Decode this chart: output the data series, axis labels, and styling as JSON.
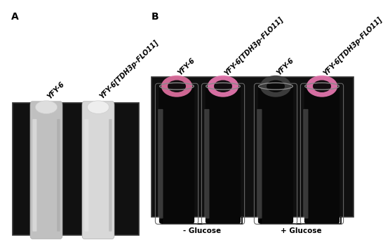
{
  "panel_A_label": "A",
  "panel_B_label": "B",
  "label_A_tubes": [
    "YFY-6",
    "YFY-6[TDH3p-FLO11]"
  ],
  "label_B_tubes": [
    "YFY-6",
    "YFY-6[TDH3p-FLO11]",
    "YFY-6",
    "YFY-6[TDH3p-FLO11]"
  ],
  "bracket_label_left": "- Glucose",
  "bracket_label_right": "+ Glucose",
  "fig_bg": "#ffffff",
  "font_size_labels": 7,
  "font_size_panel": 10,
  "font_size_bracket": 7.5,
  "panel_A_photo_bg": "#111111",
  "panel_B_photo_bg": "#101010",
  "tube_A_colors": [
    "#c0c0c0",
    "#d8d8d8"
  ],
  "tube_A_top_colors": [
    "#e0e0e0",
    "#f0f0f0"
  ],
  "tube_B_liquid_colors": [
    "#080808",
    "#080808",
    "#080808",
    "#080808"
  ],
  "tube_B_pellicle_colors": [
    "#e070a0",
    "#e878b0",
    "#404040",
    "#e878b0"
  ],
  "tube_B_glass_colors": [
    "#606060",
    "#606060",
    "#606060",
    "#606060"
  ]
}
